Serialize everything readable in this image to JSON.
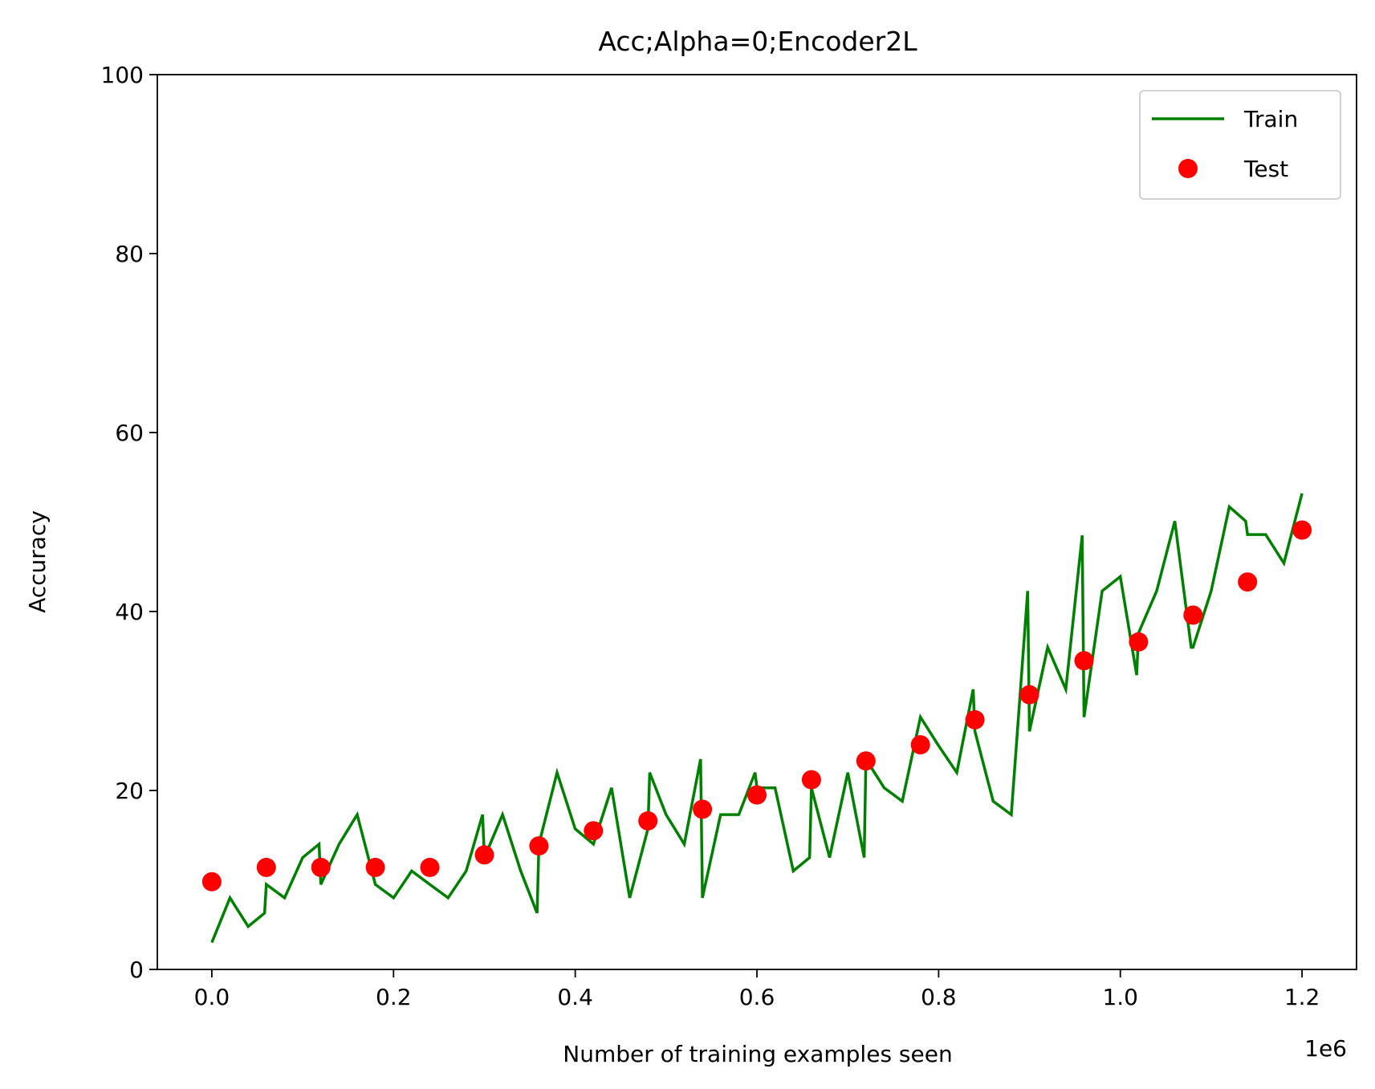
{
  "chart_data": {
    "type": "line",
    "title": "Acc;Alpha=0;Encoder2L",
    "xlabel": "Number of training examples seen",
    "ylabel": "Accuracy",
    "x_offset_label": "1e6",
    "xlim": [
      -0.06,
      1.26
    ],
    "ylim": [
      0,
      100
    ],
    "x_ticks": [
      0.0,
      0.2,
      0.4,
      0.6,
      0.8,
      1.0,
      1.2
    ],
    "x_tick_labels": [
      "0.0",
      "0.2",
      "0.4",
      "0.6",
      "0.8",
      "1.0",
      "1.2"
    ],
    "y_ticks": [
      0,
      20,
      40,
      60,
      80,
      100
    ],
    "y_tick_labels": [
      "0",
      "20",
      "40",
      "60",
      "80",
      "100"
    ],
    "grid": false,
    "legend_position": "top-right",
    "series": [
      {
        "name": "Train",
        "kind": "line",
        "color": "#008000",
        "points": [
          [
            0.0,
            3
          ],
          [
            0.02,
            8
          ],
          [
            0.04,
            4.8
          ],
          [
            0.058,
            6.3
          ],
          [
            0.06,
            9.5
          ],
          [
            0.08,
            8
          ],
          [
            0.1,
            12.5
          ],
          [
            0.118,
            14
          ],
          [
            0.12,
            9.5
          ],
          [
            0.14,
            14
          ],
          [
            0.16,
            17.3
          ],
          [
            0.18,
            9.5
          ],
          [
            0.2,
            8
          ],
          [
            0.22,
            11
          ],
          [
            0.24,
            9.5
          ],
          [
            0.26,
            8
          ],
          [
            0.28,
            11
          ],
          [
            0.298,
            17.3
          ],
          [
            0.3,
            12.5
          ],
          [
            0.32,
            17.3
          ],
          [
            0.34,
            11
          ],
          [
            0.358,
            6.3
          ],
          [
            0.36,
            14
          ],
          [
            0.38,
            22
          ],
          [
            0.4,
            15.7
          ],
          [
            0.42,
            14
          ],
          [
            0.44,
            20.3
          ],
          [
            0.46,
            8
          ],
          [
            0.48,
            15.7
          ],
          [
            0.482,
            22
          ],
          [
            0.5,
            17.3
          ],
          [
            0.52,
            14
          ],
          [
            0.538,
            23.5
          ],
          [
            0.54,
            8
          ],
          [
            0.56,
            17.3
          ],
          [
            0.58,
            17.3
          ],
          [
            0.598,
            22
          ],
          [
            0.6,
            20.3
          ],
          [
            0.62,
            20.3
          ],
          [
            0.64,
            11
          ],
          [
            0.658,
            12.5
          ],
          [
            0.66,
            20.3
          ],
          [
            0.68,
            12.5
          ],
          [
            0.7,
            22
          ],
          [
            0.718,
            12.5
          ],
          [
            0.72,
            23.5
          ],
          [
            0.74,
            20.3
          ],
          [
            0.76,
            18.8
          ],
          [
            0.78,
            28.2
          ],
          [
            0.8,
            25
          ],
          [
            0.82,
            22
          ],
          [
            0.838,
            31.3
          ],
          [
            0.84,
            26.6
          ],
          [
            0.86,
            18.8
          ],
          [
            0.88,
            17.3
          ],
          [
            0.898,
            42.3
          ],
          [
            0.9,
            26.6
          ],
          [
            0.92,
            36
          ],
          [
            0.94,
            31.3
          ],
          [
            0.958,
            48.5
          ],
          [
            0.96,
            28.2
          ],
          [
            0.98,
            42.3
          ],
          [
            1.0,
            43.9
          ],
          [
            1.018,
            32.9
          ],
          [
            1.02,
            37.6
          ],
          [
            1.04,
            42.3
          ],
          [
            1.06,
            50.1
          ],
          [
            1.078,
            36
          ],
          [
            1.08,
            36
          ],
          [
            1.1,
            42.3
          ],
          [
            1.12,
            51.7
          ],
          [
            1.138,
            50.1
          ],
          [
            1.14,
            48.6
          ],
          [
            1.16,
            48.6
          ],
          [
            1.18,
            45.4
          ],
          [
            1.2,
            53.2
          ]
        ]
      },
      {
        "name": "Test",
        "kind": "scatter",
        "color": "#ff0000",
        "points": [
          [
            0.0,
            9.8
          ],
          [
            0.06,
            11.4
          ],
          [
            0.12,
            11.4
          ],
          [
            0.18,
            11.4
          ],
          [
            0.24,
            11.4
          ],
          [
            0.3,
            12.8
          ],
          [
            0.36,
            13.8
          ],
          [
            0.42,
            15.5
          ],
          [
            0.48,
            16.6
          ],
          [
            0.54,
            17.9
          ],
          [
            0.6,
            19.5
          ],
          [
            0.66,
            21.2
          ],
          [
            0.72,
            23.3
          ],
          [
            0.78,
            25.1
          ],
          [
            0.84,
            27.9
          ],
          [
            0.9,
            30.7
          ],
          [
            0.96,
            34.5
          ],
          [
            1.02,
            36.6
          ],
          [
            1.08,
            39.6
          ],
          [
            1.14,
            43.3
          ],
          [
            1.2,
            49.1
          ]
        ]
      }
    ]
  }
}
